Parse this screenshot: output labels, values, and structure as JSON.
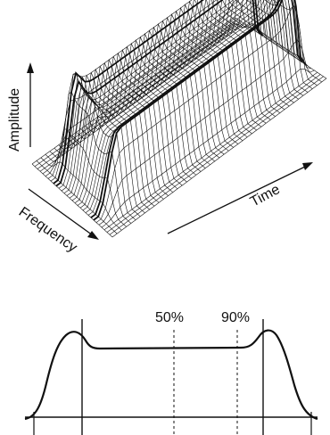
{
  "surface_plot": {
    "axis_labels": {
      "amplitude": "Amplitude",
      "frequency": "Frequency",
      "time": "Time"
    }
  },
  "profile_plot": {
    "markers": {
      "left": "50%",
      "right": "90%"
    }
  },
  "colors": {
    "ink": "#111111",
    "background": "#ffffff"
  }
}
